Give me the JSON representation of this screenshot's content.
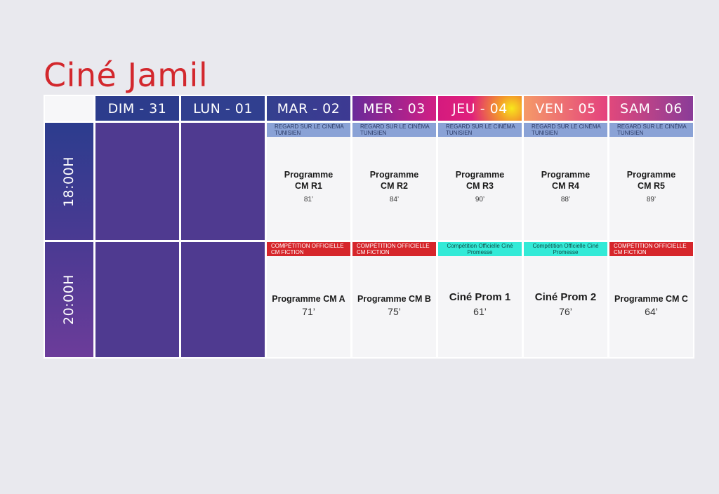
{
  "title": "Ciné Jamil",
  "days": [
    {
      "label": "DIM - 31"
    },
    {
      "label": "LUN - 01"
    },
    {
      "label": "MAR - 02"
    },
    {
      "label": "MER - 03"
    },
    {
      "label": "JEU - 04"
    },
    {
      "label": "VEN - 05"
    },
    {
      "label": "SAM - 06"
    }
  ],
  "times": [
    "18:00H",
    "20:00H"
  ],
  "slots18": [
    {
      "tag": "REGARD SUR LE CINÉMA TUNISIEN",
      "program": "Programme CM R1",
      "duration": "81’"
    },
    {
      "tag": "REGARD SUR LE CINÉMA TUNISIEN",
      "program": "Programme CM R2",
      "duration": "84’"
    },
    {
      "tag": "REGARD SUR LE CINÉMA TUNISIEN",
      "program": "Programme CM R3",
      "duration": "90’"
    },
    {
      "tag": "REGARD SUR LE CINÉMA TUNISIEN",
      "program": "Programme CM R4",
      "duration": "88’"
    },
    {
      "tag": "REGARD SUR LE CINÉMA TUNISIEN",
      "program": "Programme CM R5",
      "duration": "89’"
    }
  ],
  "slots20": [
    {
      "tag": "COMPÉTITION OFFICIELLE CM FICTION",
      "program": "Programme CM A",
      "duration": "71’"
    },
    {
      "tag": "COMPÉTITION OFFICIELLE CM FICTION",
      "program": "Programme CM B",
      "duration": "75’"
    },
    {
      "tag": "Compétition Officielle Ciné Promesse",
      "program": "Ciné Prom 1",
      "duration": "61’"
    },
    {
      "tag": "Compétition Officielle Ciné Promesse",
      "program": "Ciné Prom 2",
      "duration": "76’"
    },
    {
      "tag": "COMPÉTITION OFFICIELLE CM FICTION",
      "program": "Programme CM C",
      "duration": "64’"
    }
  ],
  "colors": {
    "title": "#d3282d",
    "empty_slot": "#4f3a90",
    "tag_regard": "#8aa2d6",
    "tag_competition": "#d6262b",
    "tag_cine_promesse": "#33ead7"
  }
}
